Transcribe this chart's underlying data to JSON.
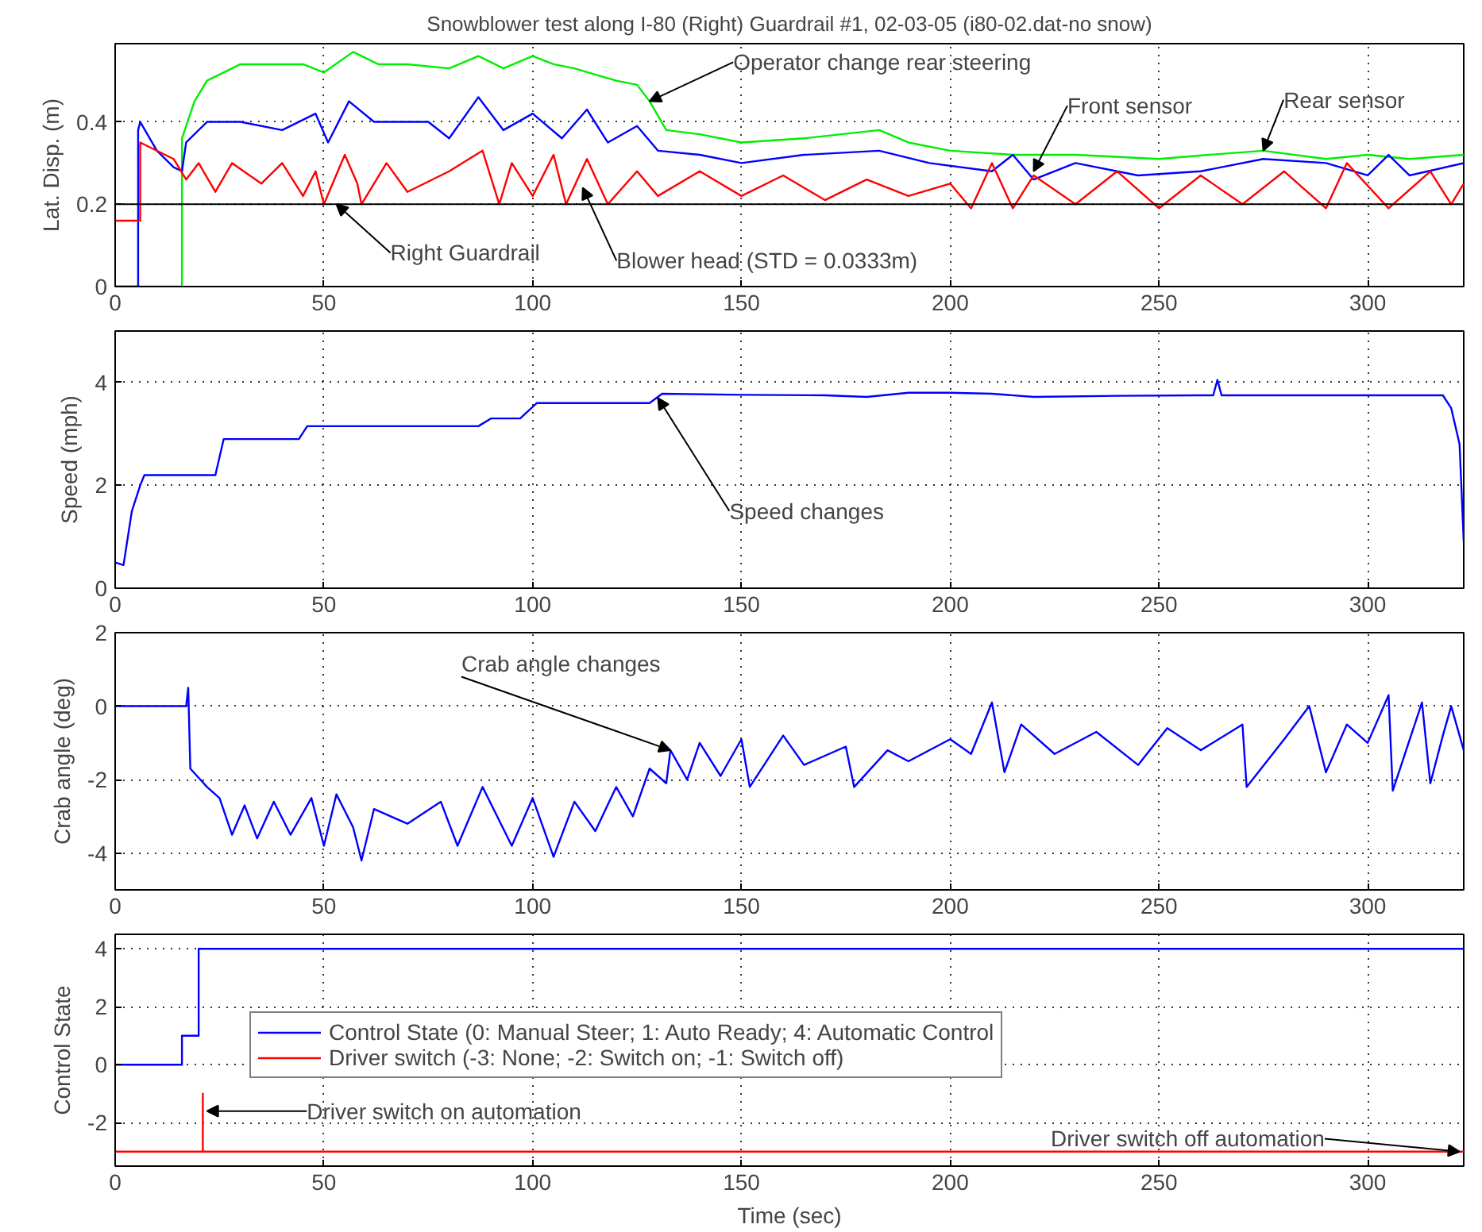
{
  "chart_data": [
    {
      "type": "line",
      "title": "Snowblower test along I-80 (Right) Guardrail #1, 02-03-05 (i80-02.dat-no snow)",
      "ylabel": "Lat. Disp. (m)",
      "xlim": [
        0,
        323
      ],
      "xticks": [
        0,
        50,
        100,
        150,
        200,
        250,
        300
      ],
      "ylim": [
        0,
        0.59
      ],
      "yticks": [
        0,
        0.2,
        0.4
      ],
      "grid": true,
      "marker": "none",
      "line_style": "solid",
      "ref_lines": [
        {
          "axis": "y",
          "value": 0.2,
          "color": "#000000"
        }
      ],
      "series": [
        {
          "color": "#00ee00",
          "x": [
            0,
            16,
            16,
            19,
            22,
            30,
            45,
            50,
            57,
            63,
            70,
            80,
            87,
            93,
            100,
            105,
            110,
            120,
            125,
            128,
            132,
            140,
            150,
            165,
            183,
            190,
            200,
            215,
            230,
            250,
            262,
            275,
            290,
            300,
            310,
            323
          ],
          "values": [
            0,
            0,
            0.36,
            0.45,
            0.5,
            0.54,
            0.54,
            0.52,
            0.57,
            0.54,
            0.54,
            0.53,
            0.56,
            0.53,
            0.56,
            0.54,
            0.53,
            0.5,
            0.49,
            0.45,
            0.38,
            0.37,
            0.35,
            0.36,
            0.38,
            0.35,
            0.33,
            0.32,
            0.32,
            0.31,
            0.32,
            0.33,
            0.31,
            0.32,
            0.31,
            0.32
          ]
        },
        {
          "color": "#0000ff",
          "x": [
            0,
            5.5,
            5.5,
            6,
            10,
            14,
            16,
            17,
            22,
            30,
            40,
            48,
            51,
            56,
            62,
            75,
            80,
            87,
            93,
            100,
            107,
            113,
            118,
            125,
            130,
            140,
            150,
            165,
            183,
            195,
            210,
            215,
            220,
            230,
            245,
            260,
            275,
            290,
            300,
            305,
            310,
            323
          ],
          "values": [
            0,
            0,
            0.38,
            0.4,
            0.33,
            0.29,
            0.28,
            0.35,
            0.4,
            0.4,
            0.38,
            0.42,
            0.35,
            0.45,
            0.4,
            0.4,
            0.36,
            0.46,
            0.38,
            0.42,
            0.36,
            0.43,
            0.35,
            0.39,
            0.33,
            0.32,
            0.3,
            0.32,
            0.33,
            0.3,
            0.28,
            0.32,
            0.26,
            0.3,
            0.27,
            0.28,
            0.31,
            0.3,
            0.27,
            0.32,
            0.27,
            0.3
          ]
        },
        {
          "color": "#ff0000",
          "x": [
            0,
            6,
            6,
            14,
            17,
            20,
            24,
            28,
            35,
            40,
            45,
            48,
            50,
            55,
            58,
            59,
            65,
            70,
            80,
            88,
            92,
            95,
            100,
            105,
            108,
            113,
            118,
            125,
            130,
            140,
            150,
            160,
            170,
            180,
            190,
            200,
            205,
            210,
            215,
            220,
            230,
            240,
            250,
            260,
            270,
            280,
            290,
            295,
            305,
            315,
            320,
            323
          ],
          "values": [
            0.16,
            0.16,
            0.35,
            0.31,
            0.26,
            0.3,
            0.23,
            0.3,
            0.25,
            0.3,
            0.22,
            0.28,
            0.2,
            0.32,
            0.25,
            0.2,
            0.3,
            0.23,
            0.28,
            0.33,
            0.2,
            0.3,
            0.22,
            0.32,
            0.2,
            0.31,
            0.2,
            0.28,
            0.22,
            0.28,
            0.22,
            0.27,
            0.21,
            0.26,
            0.22,
            0.25,
            0.19,
            0.3,
            0.19,
            0.27,
            0.2,
            0.28,
            0.19,
            0.27,
            0.2,
            0.28,
            0.19,
            0.3,
            0.19,
            0.28,
            0.2,
            0.25
          ]
        }
      ],
      "annotations": [
        {
          "text": "Operator change rear steering",
          "x": 128,
          "y": 0.45
        },
        {
          "text": "Front sensor",
          "x": 220,
          "y": 0.28
        },
        {
          "text": "Rear sensor",
          "x": 275,
          "y": 0.33
        },
        {
          "text": "Right Guardrail",
          "x": 53,
          "y": 0.2
        },
        {
          "text": "Blower head (STD = 0.0333m)",
          "x": 112,
          "y": 0.24
        }
      ]
    },
    {
      "type": "line",
      "ylabel": "Speed (mph)",
      "xlim": [
        0,
        323
      ],
      "xticks": [
        0,
        50,
        100,
        150,
        200,
        250,
        300
      ],
      "ylim": [
        0,
        5
      ],
      "yticks": [
        0,
        2,
        4
      ],
      "grid": true,
      "marker": "none",
      "line_style": "solid",
      "series": [
        {
          "color": "#0000ff",
          "x": [
            0,
            2,
            4,
            6,
            7,
            24,
            26,
            44,
            46,
            87,
            90,
            97,
            101,
            128,
            131,
            150,
            170,
            180,
            190,
            200,
            210,
            220,
            240,
            260,
            263,
            264,
            265,
            290,
            318,
            320,
            322,
            323
          ],
          "values": [
            0.5,
            0.45,
            1.5,
            2.0,
            2.2,
            2.2,
            2.9,
            2.9,
            3.15,
            3.15,
            3.3,
            3.3,
            3.6,
            3.6,
            3.78,
            3.76,
            3.75,
            3.72,
            3.8,
            3.8,
            3.78,
            3.72,
            3.74,
            3.75,
            3.75,
            4.05,
            3.75,
            3.75,
            3.75,
            3.5,
            2.8,
            0.9
          ]
        }
      ],
      "annotations": [
        {
          "text": "Speed changes",
          "x": 130,
          "y": 3.7
        }
      ]
    },
    {
      "type": "line",
      "ylabel": "Crab angle (deg)",
      "xlim": [
        0,
        323
      ],
      "xticks": [
        0,
        50,
        100,
        150,
        200,
        250,
        300
      ],
      "ylim": [
        -5,
        2
      ],
      "yticks": [
        -4,
        -2,
        0,
        2
      ],
      "grid": true,
      "marker": "none",
      "line_style": "solid",
      "series": [
        {
          "color": "#0000ff",
          "x": [
            0,
            17,
            17.5,
            18,
            22,
            25,
            28,
            31,
            34,
            38,
            42,
            47,
            50,
            53,
            57,
            59,
            62,
            70,
            78,
            82,
            88,
            95,
            100,
            105,
            110,
            115,
            120,
            124,
            128,
            132,
            133,
            137,
            140,
            145,
            150,
            152,
            160,
            165,
            175,
            177,
            185,
            190,
            200,
            205,
            210,
            213,
            217,
            225,
            235,
            245,
            252,
            260,
            270,
            271,
            280,
            286,
            290,
            295,
            300,
            305,
            306,
            313,
            315,
            318,
            320,
            323
          ],
          "values": [
            0,
            0,
            0.5,
            -1.7,
            -2.2,
            -2.5,
            -3.5,
            -2.7,
            -3.6,
            -2.6,
            -3.5,
            -2.5,
            -3.8,
            -2.4,
            -3.3,
            -4.2,
            -2.8,
            -3.2,
            -2.6,
            -3.8,
            -2.2,
            -3.8,
            -2.5,
            -4.1,
            -2.6,
            -3.4,
            -2.2,
            -3.0,
            -1.7,
            -2.1,
            -1.2,
            -2.0,
            -1.0,
            -1.9,
            -0.9,
            -2.2,
            -0.8,
            -1.6,
            -1.1,
            -2.2,
            -1.2,
            -1.5,
            -0.9,
            -1.3,
            0.1,
            -1.8,
            -0.5,
            -1.3,
            -0.7,
            -1.6,
            -0.6,
            -1.2,
            -0.5,
            -2.2,
            -0.9,
            0.0,
            -1.8,
            -0.5,
            -1.0,
            0.3,
            -2.3,
            0.1,
            -2.1,
            -0.8,
            0.0,
            -1.2
          ]
        }
      ],
      "annotations": [
        {
          "text": "Crab angle changes",
          "x": 133,
          "y": -1.2
        }
      ]
    },
    {
      "type": "line",
      "ylabel": "Control State",
      "xlabel": "Time (sec)",
      "xlim": [
        0,
        323
      ],
      "xticks": [
        0,
        50,
        100,
        150,
        200,
        250,
        300
      ],
      "ylim": [
        -3.5,
        4.5
      ],
      "yticks": [
        -2,
        0,
        2,
        4
      ],
      "grid": true,
      "marker": "none",
      "line_style": "solid",
      "legend": "top left",
      "series": [
        {
          "type": "step",
          "name": "Control State (0: Manual Steer; 1: Auto Ready; 4: Automatic Control",
          "color": "#0000ff",
          "x": [
            0,
            16,
            20,
            323
          ],
          "values": [
            0,
            1,
            4,
            4
          ]
        },
        {
          "name": "Driver switch (-3: None; -2: Switch on; -1: Switch off)",
          "color": "#ff0000",
          "x": [
            0,
            21,
            21,
            21,
            323
          ],
          "values": [
            -3,
            -3,
            -1,
            -3,
            -3
          ]
        }
      ],
      "annotations": [
        {
          "text": "Driver switch on automation",
          "x": 22,
          "y": -1.6
        },
        {
          "text": "Driver switch off automation",
          "x": 322,
          "y": -3
        }
      ]
    }
  ]
}
